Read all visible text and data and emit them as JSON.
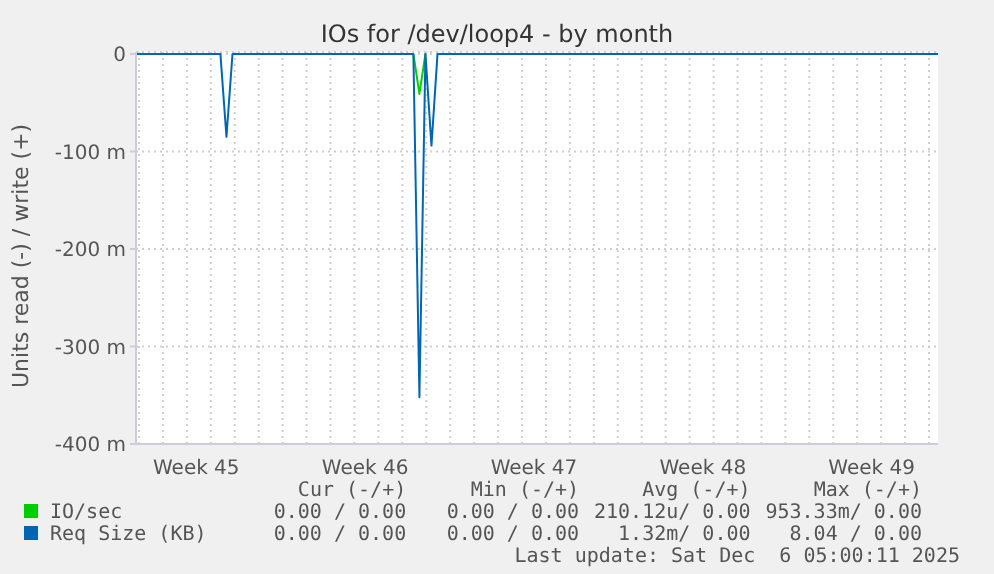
{
  "chart_data": {
    "type": "line",
    "title": "IOs for /dev/loop4 - by month",
    "ylabel": "Units read (-) / write (+)",
    "categories": [
      null,
      null,
      null,
      null,
      null,
      null,
      null,
      null,
      null,
      null,
      "Week 45",
      null,
      null,
      null,
      null,
      null,
      null,
      null,
      null,
      null,
      null,
      null,
      null,
      null,
      null,
      null,
      null,
      null,
      null,
      null,
      null,
      null,
      null,
      null,
      null,
      null,
      null,
      null,
      "Week 46",
      null,
      null,
      null,
      null,
      null,
      null,
      null,
      null,
      null,
      null,
      null,
      null,
      null,
      null,
      null,
      null,
      null,
      null,
      null,
      null,
      null,
      null,
      null,
      null,
      null,
      null,
      null,
      "Week 47",
      null,
      null,
      null,
      null,
      null,
      null,
      null,
      null,
      null,
      null,
      null,
      null,
      null,
      null,
      null,
      null,
      null,
      null,
      null,
      null,
      null,
      null,
      null,
      null,
      null,
      null,
      null,
      "Week 48",
      null,
      null,
      null,
      null,
      null,
      null,
      null,
      null,
      null,
      null,
      null,
      null,
      null,
      null,
      null,
      null,
      null,
      null,
      null,
      null,
      null,
      null,
      null,
      null,
      null,
      null,
      null,
      "Week 49",
      null,
      null,
      null,
      null,
      null,
      null,
      null,
      null,
      null,
      null,
      null
    ],
    "ylim": [
      -400,
      2
    ],
    "yticks": [
      {
        "value": 0,
        "label": "0"
      },
      {
        "value": -100,
        "label": "-100 m"
      },
      {
        "value": -200,
        "label": "-200 m"
      },
      {
        "value": -300,
        "label": "-300 m"
      },
      {
        "value": -400,
        "label": "-400 m"
      }
    ],
    "grid": true,
    "legend": "bottom",
    "marker": "none",
    "series": [
      {
        "name": "IO/sec",
        "color": "#00cc00",
        "values": [
          null,
          null,
          null,
          null,
          null,
          null,
          null,
          null,
          null,
          null,
          null,
          null,
          null,
          null,
          null,
          null,
          null,
          null,
          null,
          null,
          null,
          null,
          null,
          null,
          null,
          null,
          null,
          null,
          null,
          null,
          null,
          null,
          null,
          null,
          null,
          null,
          null,
          null,
          null,
          null,
          null,
          null,
          null,
          null,
          null,
          null,
          0,
          -41,
          0,
          null,
          null,
          null,
          null,
          null,
          null,
          null,
          null,
          null,
          null,
          null,
          null,
          null,
          null,
          null,
          null,
          null,
          null,
          null,
          null,
          null,
          null,
          null,
          null,
          null,
          null,
          null,
          null,
          null,
          null,
          null,
          null,
          null,
          null,
          null,
          null,
          null,
          null,
          null,
          null,
          null,
          null,
          null,
          null,
          null,
          null,
          null,
          null,
          null,
          null,
          null,
          null,
          null,
          null,
          null,
          null,
          null,
          null,
          null,
          null,
          null,
          null,
          null,
          null,
          null,
          null,
          null,
          null,
          null,
          null,
          null,
          null,
          null,
          null,
          null,
          null,
          null,
          null,
          null,
          null,
          null,
          null,
          null,
          null,
          null
        ]
      },
      {
        "name": "Req Size (KB)",
        "color": "#0066b3",
        "values": [
          0,
          0,
          0,
          0,
          0,
          0,
          0,
          0,
          0,
          0,
          0,
          0,
          0,
          0,
          0,
          -85,
          0,
          0,
          0,
          0,
          0,
          0,
          0,
          0,
          0,
          0,
          0,
          0,
          0,
          0,
          0,
          0,
          0,
          0,
          0,
          0,
          0,
          0,
          0,
          0,
          0,
          0,
          0,
          0,
          0,
          0,
          0,
          -352,
          0,
          -94,
          0,
          0,
          0,
          0,
          0,
          0,
          0,
          0,
          0,
          0,
          0,
          0,
          0,
          0,
          0,
          0,
          0,
          0,
          0,
          0,
          0,
          0,
          0,
          0,
          0,
          0,
          0,
          0,
          0,
          0,
          0,
          0,
          0,
          0,
          0,
          0,
          0,
          0,
          0,
          0,
          0,
          0,
          0,
          0,
          0,
          0,
          0,
          0,
          0,
          0,
          0,
          0,
          0,
          0,
          0,
          0,
          0,
          0,
          0,
          0,
          0,
          0,
          0,
          0,
          0,
          0,
          0,
          0,
          0,
          0,
          0,
          0,
          0,
          0,
          0,
          0,
          0,
          0,
          0,
          0,
          0,
          0,
          0,
          0
        ]
      }
    ],
    "annotations": [
      "Cur (-/+)",
      "Min (-/+)",
      "Avg (-/+)",
      "Max (-/+)",
      "0.00 / 0.00",
      "0.00 / 0.00",
      "210.12u/ 0.00",
      "953.33m/ 0.00",
      "0.00 / 0.00",
      "0.00 / 0.00",
      "1.32m/ 0.00",
      "8.04 / 0.00",
      "Last update: Sat Dec  6 05:00:11 2025"
    ]
  }
}
